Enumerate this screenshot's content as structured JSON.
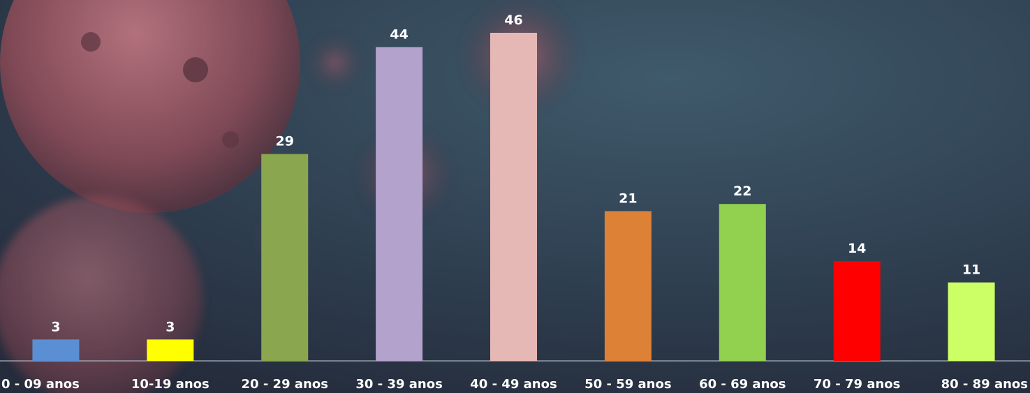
{
  "chart_data": {
    "type": "bar",
    "categories": [
      "0 - 09 anos",
      "10-19 anos",
      "20 - 29 anos",
      "30 - 39 anos",
      "40 - 49 anos",
      "50 - 59 anos",
      "60 - 69 anos",
      "70 - 79 anos",
      "80 - 89 anos"
    ],
    "values": [
      3,
      3,
      29,
      44,
      46,
      21,
      22,
      14,
      11
    ],
    "bar_colors": [
      "#5b8fd4",
      "#ffff00",
      "#8aa64f",
      "#b3a2cb",
      "#e6b8b5",
      "#dd8137",
      "#92d050",
      "#ff0000",
      "#ccff66"
    ],
    "title": "",
    "xlabel": "",
    "ylabel": "",
    "ylim": [
      0,
      46
    ],
    "grid": false,
    "legend": "none"
  }
}
